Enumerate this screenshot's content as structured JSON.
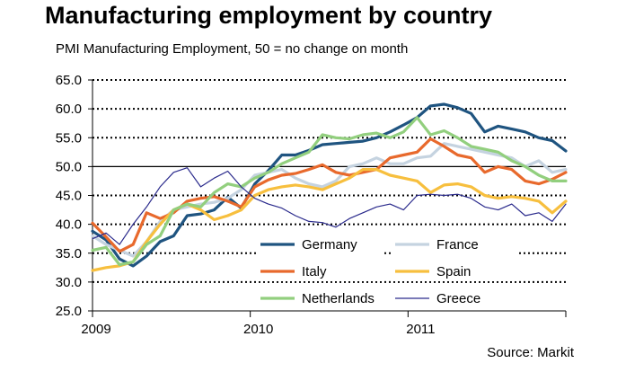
{
  "chart_data": {
    "type": "line",
    "title": "Manufacturing employment by country",
    "subtitle": "PMI Manufacturing Employment, 50 = no change on month",
    "source": "Source: Markit",
    "ylim": [
      25,
      65
    ],
    "yticks": [
      "65.0",
      "60.0",
      "55.0",
      "50.0",
      "45.0",
      "40.0",
      "35.0",
      "30.0",
      "25.0"
    ],
    "ytick_values": [
      65,
      60,
      55,
      50,
      45,
      40,
      35,
      30,
      25
    ],
    "xticks": [
      {
        "label": "2009",
        "x": 0
      },
      {
        "label": "2010",
        "x": 12
      },
      {
        "label": "2011",
        "x": 24
      }
    ],
    "xlim": [
      0,
      35
    ],
    "reference_line": 50,
    "grid": "dotted horizontal",
    "legend_position": "bottom-center",
    "series": [
      {
        "name": "Germany",
        "color": "#1f5480",
        "values": [
          38.8,
          37.3,
          34.0,
          32.8,
          34.5,
          37.0,
          38.0,
          41.5,
          41.8,
          42.5,
          44.7,
          42.8,
          47.0,
          49.3,
          52.0,
          52.0,
          52.8,
          53.8,
          54.0,
          54.2,
          54.4,
          55.0,
          56.0,
          57.2,
          58.5,
          60.5,
          60.8,
          60.2,
          59.2,
          56.0,
          57.0,
          56.5,
          56.0,
          55.0,
          54.5,
          52.7
        ]
      },
      {
        "name": "France",
        "color": "#c5d3e0",
        "values": [
          38.0,
          36.5,
          35.5,
          34.5,
          37.0,
          40.5,
          42.5,
          43.0,
          43.5,
          43.8,
          44.5,
          46.0,
          48.5,
          49.0,
          49.5,
          48.0,
          47.0,
          46.5,
          47.5,
          50.0,
          50.5,
          51.5,
          50.5,
          50.5,
          51.5,
          51.8,
          54.0,
          53.5,
          53.0,
          52.5,
          52.0,
          51.5,
          50.0,
          51.0,
          49.0,
          49.5
        ]
      },
      {
        "name": "Italy",
        "color": "#e8692c",
        "values": [
          40.2,
          37.8,
          35.3,
          36.5,
          42.0,
          41.0,
          42.0,
          44.0,
          44.5,
          44.8,
          44.0,
          43.0,
          46.5,
          47.7,
          48.5,
          48.8,
          49.5,
          50.3,
          49.0,
          48.5,
          49.0,
          49.5,
          51.5,
          52.0,
          52.5,
          54.8,
          53.5,
          52.0,
          51.5,
          49.0,
          50.0,
          49.5,
          47.5,
          47.0,
          47.8,
          49.0
        ]
      },
      {
        "name": "Spain",
        "color": "#f7bf3e",
        "values": [
          32.0,
          32.5,
          32.8,
          33.5,
          37.0,
          40.0,
          42.5,
          43.5,
          42.5,
          40.8,
          41.5,
          42.5,
          45.0,
          46.0,
          46.5,
          46.8,
          46.5,
          46.0,
          47.0,
          48.0,
          49.5,
          49.5,
          48.5,
          48.0,
          47.5,
          45.5,
          46.8,
          47.0,
          46.5,
          45.0,
          44.5,
          44.8,
          44.5,
          44.0,
          42.0,
          44.0
        ]
      },
      {
        "name": "Netherlands",
        "color": "#92cf7e",
        "values": [
          35.5,
          36.0,
          33.0,
          33.5,
          36.5,
          38.0,
          42.5,
          43.5,
          43.0,
          45.5,
          47.0,
          46.5,
          48.0,
          49.0,
          50.5,
          51.5,
          52.5,
          55.5,
          55.0,
          54.8,
          55.5,
          55.8,
          55.0,
          56.0,
          58.5,
          55.5,
          56.2,
          55.0,
          53.5,
          53.0,
          52.5,
          51.0,
          50.0,
          48.5,
          47.5,
          47.5
        ]
      },
      {
        "name": "Greece",
        "color": "#2a2a8c",
        "values": [
          37.5,
          38.5,
          36.5,
          40.0,
          43.0,
          46.5,
          49.0,
          49.8,
          46.5,
          48.0,
          49.2,
          46.5,
          44.5,
          43.5,
          42.8,
          41.5,
          40.5,
          40.3,
          39.5,
          41.0,
          42.0,
          43.0,
          43.5,
          42.5,
          45.0,
          45.2,
          45.0,
          45.2,
          44.5,
          43.0,
          42.5,
          43.5,
          41.5,
          42.0,
          40.5,
          43.5
        ]
      }
    ]
  }
}
